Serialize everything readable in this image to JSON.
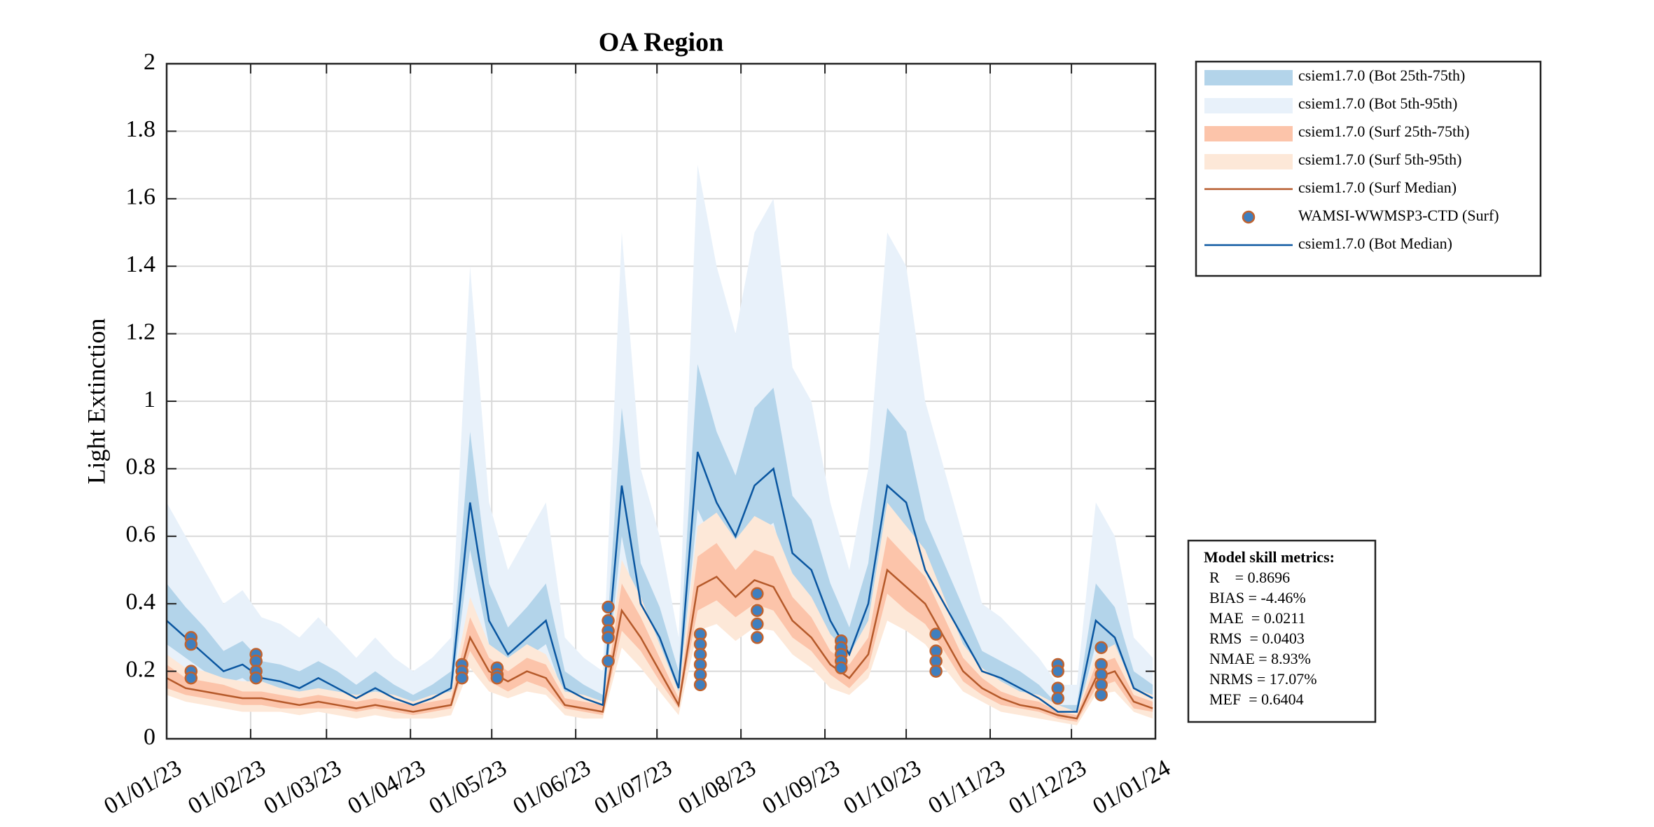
{
  "chart_data": {
    "type": "timeseries",
    "title": "OA Region",
    "ylabel": "Light Extinction",
    "xlim": [
      "2023-01-01",
      "2024-01-01"
    ],
    "xticks": [
      {
        "value": "2023-01-01",
        "label": "01/01/23"
      },
      {
        "value": "2023-02-01",
        "label": "01/02/23"
      },
      {
        "value": "2023-03-01",
        "label": "01/03/23"
      },
      {
        "value": "2023-04-01",
        "label": "01/04/23"
      },
      {
        "value": "2023-05-01",
        "label": "01/05/23"
      },
      {
        "value": "2023-06-01",
        "label": "01/06/23"
      },
      {
        "value": "2023-07-01",
        "label": "01/07/23"
      },
      {
        "value": "2023-08-01",
        "label": "01/08/23"
      },
      {
        "value": "2023-09-01",
        "label": "01/09/23"
      },
      {
        "value": "2023-10-01",
        "label": "01/10/23"
      },
      {
        "value": "2023-11-01",
        "label": "01/11/23"
      },
      {
        "value": "2023-12-01",
        "label": "01/12/23"
      },
      {
        "value": "2024-01-01",
        "label": "01/01/24"
      }
    ],
    "ylim": [
      0,
      2
    ],
    "yticks": [
      0,
      0.2,
      0.4,
      0.6,
      0.8,
      1,
      1.2,
      1.4,
      1.6,
      1.8,
      2
    ],
    "grid": true,
    "x": [
      "2023-01-01",
      "2023-01-08",
      "2023-01-15",
      "2023-01-22",
      "2023-01-29",
      "2023-02-05",
      "2023-02-12",
      "2023-02-19",
      "2023-02-26",
      "2023-03-05",
      "2023-03-12",
      "2023-03-19",
      "2023-03-26",
      "2023-04-02",
      "2023-04-09",
      "2023-04-16",
      "2023-04-23",
      "2023-04-30",
      "2023-05-07",
      "2023-05-14",
      "2023-05-21",
      "2023-05-28",
      "2023-06-04",
      "2023-06-11",
      "2023-06-18",
      "2023-06-25",
      "2023-07-02",
      "2023-07-09",
      "2023-07-16",
      "2023-07-23",
      "2023-07-30",
      "2023-08-06",
      "2023-08-13",
      "2023-08-20",
      "2023-08-27",
      "2023-09-03",
      "2023-09-10",
      "2023-09-17",
      "2023-09-24",
      "2023-10-01",
      "2023-10-08",
      "2023-10-15",
      "2023-10-22",
      "2023-10-29",
      "2023-11-05",
      "2023-11-12",
      "2023-11-19",
      "2023-11-26",
      "2023-12-03",
      "2023-12-10",
      "2023-12-17",
      "2023-12-24",
      "2023-12-31"
    ],
    "legend": "upper right outside",
    "series": [
      {
        "name": "csiem1.7.0 (Bot 25th-75th)",
        "type": "band",
        "color": "#b3d4ea",
        "low": [
          0.28,
          0.24,
          0.2,
          0.16,
          0.18,
          0.14,
          0.14,
          0.12,
          0.14,
          0.12,
          0.1,
          0.12,
          0.1,
          0.08,
          0.1,
          0.12,
          0.56,
          0.28,
          0.2,
          0.24,
          0.28,
          0.12,
          0.1,
          0.08,
          0.6,
          0.32,
          0.24,
          0.12,
          0.68,
          0.56,
          0.48,
          0.6,
          0.64,
          0.44,
          0.4,
          0.28,
          0.2,
          0.32,
          0.6,
          0.56,
          0.4,
          0.32,
          0.24,
          0.16,
          0.14,
          0.12,
          0.1,
          0.06,
          0.06,
          0.28,
          0.24,
          0.12,
          0.1
        ],
        "high": [
          0.46,
          0.39,
          0.33,
          0.26,
          0.29,
          0.23,
          0.22,
          0.2,
          0.23,
          0.2,
          0.16,
          0.2,
          0.16,
          0.13,
          0.16,
          0.2,
          0.91,
          0.46,
          0.33,
          0.39,
          0.46,
          0.2,
          0.16,
          0.13,
          0.98,
          0.52,
          0.39,
          0.2,
          1.11,
          0.91,
          0.78,
          0.98,
          1.04,
          0.72,
          0.65,
          0.46,
          0.33,
          0.52,
          0.98,
          0.91,
          0.65,
          0.52,
          0.39,
          0.26,
          0.23,
          0.2,
          0.16,
          0.1,
          0.1,
          0.46,
          0.39,
          0.2,
          0.16
        ]
      },
      {
        "name": "csiem1.7.0 (Bot 5th-95th)",
        "type": "band",
        "color": "#e8f1fa",
        "low": [
          0.21,
          0.18,
          0.15,
          0.12,
          0.13,
          0.11,
          0.1,
          0.09,
          0.11,
          0.09,
          0.07,
          0.09,
          0.07,
          0.06,
          0.07,
          0.09,
          0.42,
          0.21,
          0.15,
          0.18,
          0.21,
          0.09,
          0.07,
          0.06,
          0.45,
          0.24,
          0.18,
          0.09,
          0.51,
          0.42,
          0.36,
          0.45,
          0.48,
          0.33,
          0.3,
          0.21,
          0.15,
          0.24,
          0.45,
          0.42,
          0.3,
          0.24,
          0.18,
          0.12,
          0.11,
          0.09,
          0.07,
          0.05,
          0.05,
          0.21,
          0.18,
          0.09,
          0.07
        ],
        "high": [
          0.7,
          0.6,
          0.5,
          0.4,
          0.44,
          0.36,
          0.34,
          0.3,
          0.36,
          0.3,
          0.24,
          0.3,
          0.24,
          0.2,
          0.24,
          0.3,
          1.4,
          0.7,
          0.5,
          0.6,
          0.7,
          0.3,
          0.24,
          0.2,
          1.5,
          0.8,
          0.6,
          0.3,
          1.7,
          1.4,
          1.2,
          1.5,
          1.6,
          1.1,
          1.0,
          0.7,
          0.5,
          0.8,
          1.5,
          1.4,
          1.0,
          0.8,
          0.6,
          0.4,
          0.36,
          0.3,
          0.24,
          0.16,
          0.16,
          0.7,
          0.6,
          0.3,
          0.24
        ]
      },
      {
        "name": "csiem1.7.0 (Surf 25th-75th)",
        "type": "band",
        "color": "#fcc4aa",
        "low": [
          0.15,
          0.13,
          0.12,
          0.11,
          0.1,
          0.1,
          0.09,
          0.09,
          0.09,
          0.09,
          0.08,
          0.09,
          0.08,
          0.07,
          0.08,
          0.09,
          0.26,
          0.17,
          0.14,
          0.17,
          0.15,
          0.09,
          0.08,
          0.07,
          0.32,
          0.26,
          0.17,
          0.09,
          0.38,
          0.41,
          0.36,
          0.4,
          0.38,
          0.3,
          0.26,
          0.19,
          0.15,
          0.21,
          0.43,
          0.38,
          0.34,
          0.26,
          0.17,
          0.13,
          0.1,
          0.09,
          0.08,
          0.06,
          0.05,
          0.15,
          0.17,
          0.09,
          0.08
        ],
        "high": [
          0.22,
          0.18,
          0.17,
          0.16,
          0.14,
          0.14,
          0.13,
          0.12,
          0.13,
          0.12,
          0.11,
          0.12,
          0.11,
          0.1,
          0.11,
          0.12,
          0.36,
          0.24,
          0.2,
          0.24,
          0.22,
          0.12,
          0.11,
          0.1,
          0.46,
          0.36,
          0.24,
          0.12,
          0.54,
          0.58,
          0.5,
          0.56,
          0.54,
          0.42,
          0.36,
          0.26,
          0.22,
          0.3,
          0.6,
          0.54,
          0.48,
          0.36,
          0.24,
          0.18,
          0.14,
          0.12,
          0.11,
          0.08,
          0.07,
          0.22,
          0.24,
          0.13,
          0.11
        ]
      },
      {
        "name": "csiem1.7.0 (Surf 5th-95th)",
        "type": "band",
        "color": "#fde8d8",
        "low": [
          0.13,
          0.11,
          0.1,
          0.09,
          0.08,
          0.08,
          0.08,
          0.07,
          0.08,
          0.07,
          0.06,
          0.07,
          0.06,
          0.06,
          0.06,
          0.07,
          0.21,
          0.14,
          0.12,
          0.14,
          0.13,
          0.07,
          0.06,
          0.06,
          0.27,
          0.21,
          0.14,
          0.07,
          0.32,
          0.34,
          0.29,
          0.33,
          0.32,
          0.25,
          0.21,
          0.15,
          0.13,
          0.18,
          0.35,
          0.32,
          0.28,
          0.21,
          0.14,
          0.11,
          0.08,
          0.07,
          0.06,
          0.05,
          0.04,
          0.13,
          0.14,
          0.08,
          0.06
        ],
        "high": [
          0.25,
          0.21,
          0.2,
          0.18,
          0.17,
          0.17,
          0.15,
          0.14,
          0.15,
          0.14,
          0.13,
          0.14,
          0.13,
          0.11,
          0.13,
          0.14,
          0.42,
          0.28,
          0.24,
          0.28,
          0.25,
          0.14,
          0.13,
          0.11,
          0.53,
          0.42,
          0.28,
          0.14,
          0.63,
          0.67,
          0.59,
          0.66,
          0.63,
          0.49,
          0.42,
          0.31,
          0.25,
          0.35,
          0.7,
          0.63,
          0.56,
          0.42,
          0.28,
          0.21,
          0.17,
          0.14,
          0.13,
          0.1,
          0.08,
          0.25,
          0.28,
          0.15,
          0.13
        ]
      },
      {
        "name": "csiem1.7.0 (Surf Median)",
        "type": "line",
        "color": "#b5592a",
        "values": [
          0.18,
          0.15,
          0.14,
          0.13,
          0.12,
          0.12,
          0.11,
          0.1,
          0.11,
          0.1,
          0.09,
          0.1,
          0.09,
          0.08,
          0.09,
          0.1,
          0.3,
          0.2,
          0.17,
          0.2,
          0.18,
          0.1,
          0.09,
          0.08,
          0.38,
          0.3,
          0.2,
          0.1,
          0.45,
          0.48,
          0.42,
          0.47,
          0.45,
          0.35,
          0.3,
          0.22,
          0.18,
          0.25,
          0.5,
          0.45,
          0.4,
          0.3,
          0.2,
          0.15,
          0.12,
          0.1,
          0.09,
          0.07,
          0.06,
          0.18,
          0.2,
          0.11,
          0.09
        ]
      },
      {
        "name": "WAMSI-WWMSP3-CTD (Surf)",
        "type": "scatter",
        "color": "#3f7fbf",
        "edgecolor": "#c0622e",
        "x": [
          "2023-01-10",
          "2023-01-10",
          "2023-01-10",
          "2023-01-10",
          "2023-02-03",
          "2023-02-03",
          "2023-02-03",
          "2023-02-03",
          "2023-04-20",
          "2023-04-20",
          "2023-04-20",
          "2023-05-03",
          "2023-05-03",
          "2023-05-03",
          "2023-06-13",
          "2023-06-13",
          "2023-06-13",
          "2023-06-13",
          "2023-06-13",
          "2023-07-17",
          "2023-07-17",
          "2023-07-17",
          "2023-07-17",
          "2023-07-17",
          "2023-07-17",
          "2023-08-07",
          "2023-08-07",
          "2023-08-07",
          "2023-08-07",
          "2023-09-07",
          "2023-09-07",
          "2023-09-07",
          "2023-09-07",
          "2023-09-07",
          "2023-10-12",
          "2023-10-12",
          "2023-10-12",
          "2023-10-12",
          "2023-11-26",
          "2023-11-26",
          "2023-11-26",
          "2023-11-26",
          "2023-12-12",
          "2023-12-12",
          "2023-12-12",
          "2023-12-12",
          "2023-12-12"
        ],
        "values": [
          0.3,
          0.28,
          0.2,
          0.18,
          0.25,
          0.23,
          0.2,
          0.18,
          0.22,
          0.2,
          0.18,
          0.21,
          0.19,
          0.18,
          0.39,
          0.35,
          0.32,
          0.3,
          0.23,
          0.31,
          0.28,
          0.25,
          0.22,
          0.19,
          0.16,
          0.43,
          0.38,
          0.34,
          0.3,
          0.29,
          0.27,
          0.25,
          0.23,
          0.21,
          0.31,
          0.26,
          0.23,
          0.2,
          0.22,
          0.2,
          0.15,
          0.12,
          0.27,
          0.22,
          0.19,
          0.16,
          0.13
        ]
      },
      {
        "name": "csiem1.7.0 (Bot Median)",
        "type": "line",
        "color": "#0a56a0",
        "values": [
          0.35,
          0.3,
          0.25,
          0.2,
          0.22,
          0.18,
          0.17,
          0.15,
          0.18,
          0.15,
          0.12,
          0.15,
          0.12,
          0.1,
          0.12,
          0.15,
          0.7,
          0.35,
          0.25,
          0.3,
          0.35,
          0.15,
          0.12,
          0.1,
          0.75,
          0.4,
          0.3,
          0.15,
          0.85,
          0.7,
          0.6,
          0.75,
          0.8,
          0.55,
          0.5,
          0.35,
          0.25,
          0.4,
          0.75,
          0.7,
          0.5,
          0.4,
          0.3,
          0.2,
          0.18,
          0.15,
          0.12,
          0.08,
          0.08,
          0.35,
          0.3,
          0.15,
          0.12
        ]
      }
    ],
    "metrics": {
      "title": "Model skill metrics:",
      "lines": [
        "R    = 0.8696",
        "BIAS = -4.46%",
        "MAE  = 0.0211",
        "RMS  = 0.0403",
        "NMAE = 8.93%",
        "NRMS = 17.07%",
        "MEF  = 0.6404"
      ]
    }
  }
}
